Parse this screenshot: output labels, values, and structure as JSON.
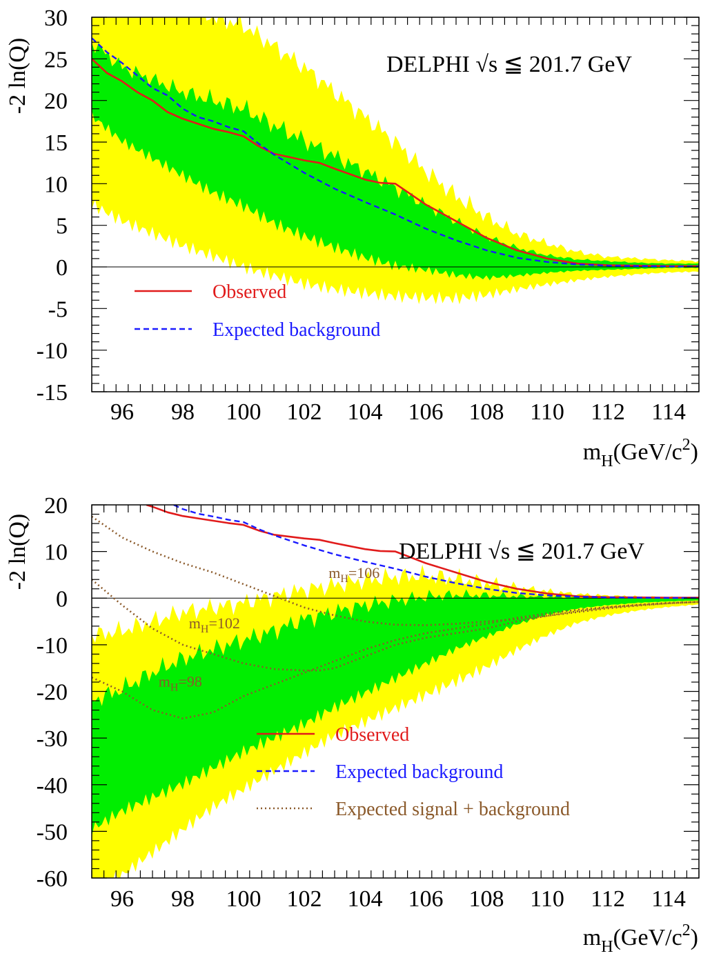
{
  "colors": {
    "band_2sigma": "#ffff00",
    "band_1sigma": "#00ee00",
    "observed": "#e11b1b",
    "expected_background": "#1a1aff",
    "expected_signal": "#8b5a2b",
    "axes": "#000000"
  },
  "chart_data": [
    {
      "type": "line",
      "experiment_label": "DELPHI",
      "energy_label": "√s ≦ 201.7 GeV",
      "ylabel": "-2 ln(Q)",
      "xlabel": "m",
      "xlabel_sub": "H",
      "xlabel_unit": "(GeV/c",
      "xlabel_sup": "2",
      "xlabel_close": ")",
      "xlim": [
        95,
        115
      ],
      "ylim": [
        -15,
        30
      ],
      "x_ticks": [
        96,
        98,
        100,
        102,
        104,
        106,
        108,
        110,
        112,
        114
      ],
      "y_ticks": [
        -15,
        -10,
        -5,
        0,
        5,
        10,
        15,
        20,
        25,
        30
      ],
      "x_tick_labels": [
        "96",
        "98",
        "100",
        "102",
        "104",
        "106",
        "108",
        "110",
        "112",
        "114"
      ],
      "y_tick_labels": [
        "-15",
        "-10",
        "-5",
        "0",
        "5",
        "10",
        "15",
        "20",
        "25",
        "30"
      ],
      "legend": {
        "placement": "lower-left",
        "entries": [
          {
            "label": "Observed",
            "series": "observed"
          },
          {
            "label": "Expected background",
            "series": "expected_background"
          }
        ]
      },
      "band_x": [
        95,
        96,
        97,
        98,
        99,
        100,
        101,
        102,
        103,
        104,
        105,
        106,
        107,
        108,
        109,
        110,
        111,
        112,
        113,
        114,
        115
      ],
      "band_2sigma_upper": [
        31,
        31,
        31,
        31,
        30,
        29,
        26.5,
        24,
        21,
        18,
        15,
        11.5,
        8.5,
        6,
        4,
        2.8,
        1.8,
        1.2,
        1,
        0.8,
        0.7
      ],
      "band_2sigma_lower": [
        7,
        5,
        3.5,
        2,
        0.8,
        -0.5,
        -1.5,
        -2.4,
        -3,
        -3.4,
        -3.7,
        -3.8,
        -3.8,
        -3.3,
        -2.6,
        -2,
        -1.5,
        -1.1,
        -0.8,
        -0.6,
        -0.5
      ],
      "band_1sigma_upper": [
        27,
        24,
        22.5,
        21,
        20,
        19,
        17,
        15.2,
        13.3,
        11.5,
        9.5,
        7.5,
        5.5,
        3.6,
        2.3,
        1.4,
        0.9,
        0.7,
        0.5,
        0.4,
        0.4
      ],
      "band_1sigma_lower": [
        18,
        15,
        13,
        11,
        9,
        7.5,
        5.5,
        4,
        2.7,
        1.5,
        0.5,
        0,
        -0.7,
        -1.1,
        -0.9,
        -0.6,
        -0.4,
        -0.3,
        -0.2,
        -0.1,
        -0.1
      ],
      "series": [
        {
          "id": "observed",
          "x": [
            95,
            95.5,
            96,
            96.5,
            97,
            97.5,
            98,
            98.5,
            99,
            99.5,
            100,
            100.5,
            101,
            102,
            102.5,
            103,
            104,
            104.5,
            105,
            106,
            107,
            108,
            109,
            110,
            111,
            112,
            113,
            114,
            115
          ],
          "y": [
            25,
            23.3,
            22.3,
            21,
            20,
            18.6,
            17.8,
            17.2,
            16.6,
            16.2,
            15.7,
            14.5,
            13.6,
            12.8,
            12.5,
            11.8,
            10.5,
            10.1,
            10.0,
            7.5,
            5.5,
            3.5,
            2.0,
            1.0,
            0.4,
            0.2,
            0.15,
            0.1,
            0.1
          ]
        },
        {
          "id": "expected_background",
          "x": [
            95,
            95.5,
            96,
            96.5,
            97,
            97.5,
            98,
            98.5,
            99,
            99.5,
            100,
            100.5,
            101,
            102,
            103,
            104,
            105,
            106,
            107,
            108,
            109,
            110,
            111,
            112,
            113,
            114,
            115
          ],
          "y": [
            27.5,
            25.8,
            24.5,
            23,
            21.5,
            20.6,
            19,
            18,
            17.5,
            16.8,
            16.3,
            14.8,
            13.5,
            11.3,
            9.4,
            7.8,
            6.3,
            4.6,
            3.2,
            2.0,
            1.1,
            0.6,
            0.3,
            0.15,
            0.1,
            0.05,
            0.05
          ]
        }
      ]
    },
    {
      "type": "line",
      "experiment_label": "DELPHI",
      "energy_label": "√s ≦ 201.7 GeV",
      "ylabel": "-2 ln(Q)",
      "xlabel": "m",
      "xlabel_sub": "H",
      "xlabel_unit": "(GeV/c",
      "xlabel_sup": "2",
      "xlabel_close": ")",
      "xlim": [
        95,
        115
      ],
      "ylim": [
        -60,
        20
      ],
      "x_ticks": [
        96,
        98,
        100,
        102,
        104,
        106,
        108,
        110,
        112,
        114
      ],
      "y_ticks": [
        -60,
        -50,
        -40,
        -30,
        -20,
        -10,
        0,
        10,
        20
      ],
      "x_tick_labels": [
        "96",
        "98",
        "100",
        "102",
        "104",
        "106",
        "108",
        "110",
        "112",
        "114"
      ],
      "y_tick_labels": [
        "-60",
        "-50",
        "-40",
        "-30",
        "-20",
        "-10",
        "0",
        "10",
        "20"
      ],
      "legend": {
        "placement": "lower-center",
        "entries": [
          {
            "label": "Observed",
            "series": "observed"
          },
          {
            "label": "Expected background",
            "series": "expected_background"
          },
          {
            "label": "Expected signal + background",
            "series": "expected_signal"
          }
        ]
      },
      "annotations": [
        {
          "main": "m",
          "sub": "H",
          "tail": "=106",
          "x": 102.8,
          "y": 4.3
        },
        {
          "main": "m",
          "sub": "H",
          "tail": "=102",
          "x": 98.2,
          "y": -6.5
        },
        {
          "main": "m",
          "sub": "H",
          "tail": "=98",
          "x": 97.2,
          "y": -19
        }
      ],
      "band_x": [
        95,
        96,
        97,
        98,
        99,
        100,
        101,
        102,
        103,
        104,
        105,
        106,
        107,
        108,
        109,
        110,
        111,
        112,
        113,
        114,
        115
      ],
      "band_2sigma_upper": [
        -8,
        -7,
        -5,
        -3,
        -2,
        -1,
        0.5,
        1.8,
        2.8,
        3.8,
        4.6,
        4.8,
        4.2,
        3.2,
        2.2,
        1.4,
        0.8,
        0.5,
        0.3,
        0.2,
        0.1
      ],
      "band_2sigma_lower": [
        -63,
        -60,
        -55,
        -50,
        -45,
        -41,
        -37,
        -33,
        -29,
        -26,
        -23,
        -20,
        -17,
        -14,
        -10.5,
        -7.5,
        -5,
        -3.5,
        -2.5,
        -1.8,
        -1.3
      ],
      "band_1sigma_upper": [
        -22,
        -19.5,
        -16,
        -13,
        -11,
        -9,
        -7,
        -4.5,
        -3,
        -1.5,
        -0.5,
        0.3,
        0.7,
        0.6,
        0.4,
        0.3,
        0.2,
        0.1,
        0.05,
        0.02,
        0
      ],
      "band_1sigma_lower": [
        -49,
        -45,
        -42,
        -39,
        -35.5,
        -32,
        -29,
        -26,
        -22.5,
        -19.5,
        -16.5,
        -13.5,
        -10.5,
        -8,
        -5.5,
        -3.5,
        -2.2,
        -1.5,
        -1,
        -0.7,
        -0.5
      ],
      "series": [
        {
          "id": "observed",
          "x": [
            96.8,
            97,
            97.5,
            98,
            98.5,
            99,
            99.5,
            100,
            100.5,
            101,
            102,
            102.5,
            103,
            104,
            104.5,
            105,
            106,
            107,
            108,
            109,
            110,
            111,
            112,
            113,
            114,
            115
          ],
          "y": [
            20,
            19.6,
            18.4,
            17.6,
            17.1,
            16.6,
            16.1,
            15.7,
            14.5,
            13.6,
            12.8,
            12.5,
            11.8,
            10.5,
            10.1,
            10.0,
            7.5,
            5.5,
            3.5,
            2.0,
            1.0,
            0.4,
            0.2,
            0.15,
            0.1,
            0.1
          ]
        },
        {
          "id": "expected_background",
          "x": [
            97.7,
            98,
            98.5,
            99,
            99.5,
            100,
            100.5,
            101,
            102,
            103,
            104,
            105,
            106,
            107,
            108,
            109,
            110,
            111,
            112,
            113,
            114,
            115
          ],
          "y": [
            20,
            19.1,
            18.1,
            17.5,
            16.8,
            16.3,
            14.8,
            13.5,
            11.3,
            9.4,
            7.8,
            6.3,
            4.6,
            3.2,
            2.0,
            1.1,
            0.6,
            0.3,
            0.15,
            0.1,
            0.05,
            0.05
          ]
        },
        {
          "id": "expected_signal",
          "label": "m_H=106",
          "x": [
            95,
            96,
            97,
            98,
            99,
            100,
            101,
            102,
            103,
            104,
            105,
            106,
            107,
            108,
            109,
            110,
            111,
            112,
            113,
            114,
            115
          ],
          "y": [
            17.5,
            13,
            10,
            7.5,
            5.5,
            3,
            0.5,
            -2,
            -3.7,
            -5,
            -5.7,
            -5.8,
            -5.5,
            -5,
            -4.5,
            -3.8,
            -3,
            -2.2,
            -1.6,
            -1.1,
            -0.8
          ]
        },
        {
          "id": "expected_signal",
          "label": "m_H=102",
          "x": [
            95,
            96,
            97,
            98,
            99,
            100,
            101,
            102,
            102.5,
            103,
            104,
            105,
            106,
            107,
            108,
            109,
            110,
            111,
            112,
            113,
            114,
            115
          ],
          "y": [
            4,
            -1.5,
            -6.5,
            -10,
            -12,
            -14,
            -15.2,
            -15.5,
            -15.5,
            -15,
            -12.5,
            -10,
            -8.5,
            -7.5,
            -6.5,
            -5,
            -3.8,
            -2.8,
            -2,
            -1.5,
            -1.1,
            -0.8
          ]
        },
        {
          "id": "expected_signal",
          "label": "m_H=98",
          "x": [
            95,
            96,
            97,
            98,
            99,
            100,
            101,
            102,
            103,
            104,
            105,
            106,
            107,
            108,
            109,
            110,
            111,
            112,
            113,
            114,
            115
          ],
          "y": [
            -17,
            -20,
            -24,
            -25.8,
            -24.5,
            -21,
            -18.5,
            -16,
            -13.5,
            -11,
            -9,
            -7.5,
            -6.5,
            -5.5,
            -4.2,
            -3.3,
            -2.5,
            -1.9,
            -1.4,
            -1,
            -0.8
          ]
        }
      ]
    }
  ]
}
